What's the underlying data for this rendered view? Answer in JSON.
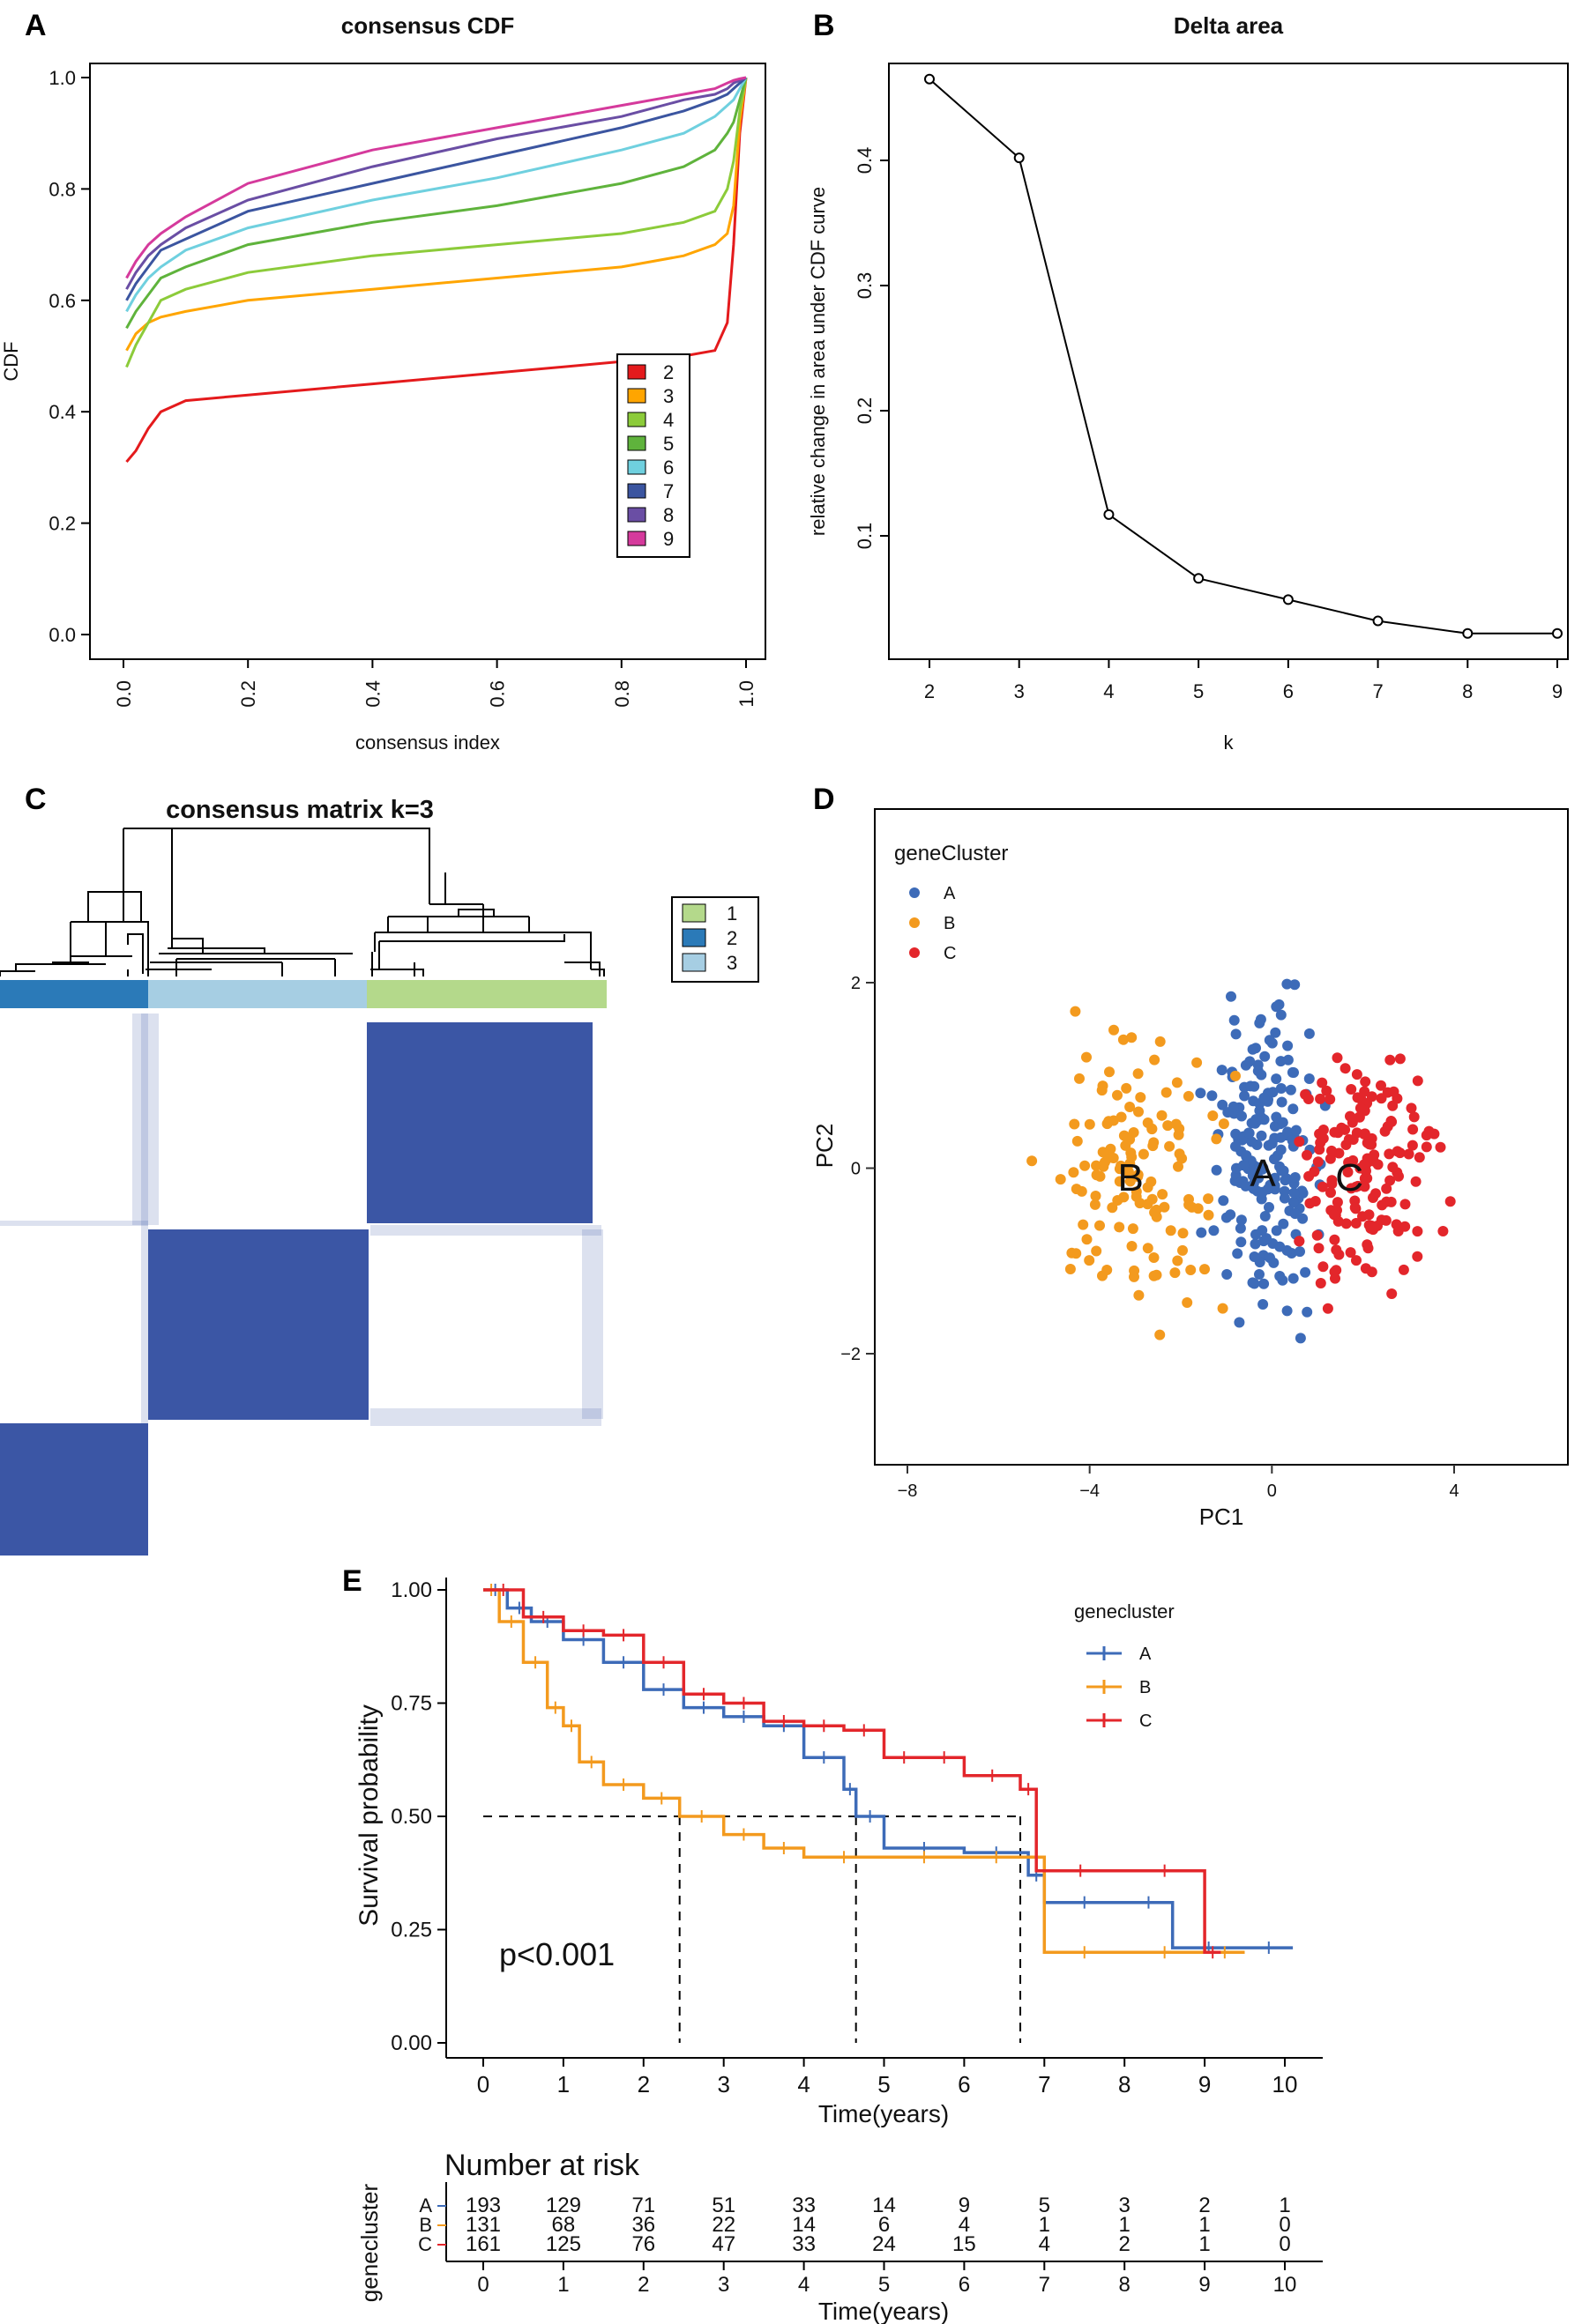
{
  "panel_labels": [
    "A",
    "B",
    "C",
    "D",
    "E"
  ],
  "colors": {
    "k2": "#e41a1c",
    "k3": "#ffa500",
    "k4": "#8ccb3a",
    "k5": "#5fb33c",
    "k6": "#6fd0df",
    "k7": "#3b55a0",
    "k8": "#6a4ea4",
    "k9": "#d53a9c",
    "clusterA": "#3d6bb8",
    "clusterB": "#f39a1e",
    "clusterC": "#e3262b",
    "heat": "#3b56a5",
    "cl1": "#b4d98b",
    "cl2": "#2b7ab8",
    "cl3": "#a6cee3"
  },
  "chart_data": [
    {
      "id": "A",
      "type": "line",
      "title": "consensus CDF",
      "xlabel": "consensus index",
      "ylabel": "CDF",
      "xlim": [
        0,
        1
      ],
      "ylim": [
        0,
        1
      ],
      "xticks": [
        "0.0",
        "0.2",
        "0.4",
        "0.6",
        "0.8",
        "1.0"
      ],
      "yticks": [
        "0.0",
        "0.2",
        "0.4",
        "0.6",
        "0.8",
        "1.0"
      ],
      "legend_position": "center-right",
      "series": [
        {
          "name": "2",
          "color": "#e41a1c",
          "x": [
            0.005,
            0.02,
            0.04,
            0.06,
            0.1,
            0.2,
            0.4,
            0.6,
            0.8,
            0.9,
            0.95,
            0.97,
            0.98,
            0.99,
            1.0
          ],
          "y": [
            0.31,
            0.33,
            0.37,
            0.4,
            0.42,
            0.43,
            0.45,
            0.47,
            0.49,
            0.5,
            0.51,
            0.56,
            0.7,
            0.9,
            1.0
          ]
        },
        {
          "name": "3",
          "color": "#ffa500",
          "x": [
            0.005,
            0.02,
            0.04,
            0.06,
            0.1,
            0.2,
            0.4,
            0.6,
            0.8,
            0.9,
            0.95,
            0.97,
            0.98,
            0.99,
            1.0
          ],
          "y": [
            0.51,
            0.54,
            0.56,
            0.57,
            0.58,
            0.6,
            0.62,
            0.64,
            0.66,
            0.68,
            0.7,
            0.72,
            0.77,
            0.92,
            1.0
          ]
        },
        {
          "name": "4",
          "color": "#8ccb3a",
          "x": [
            0.005,
            0.02,
            0.04,
            0.06,
            0.1,
            0.2,
            0.4,
            0.6,
            0.8,
            0.9,
            0.95,
            0.97,
            0.98,
            0.99,
            1.0
          ],
          "y": [
            0.48,
            0.52,
            0.56,
            0.6,
            0.62,
            0.65,
            0.68,
            0.7,
            0.72,
            0.74,
            0.76,
            0.8,
            0.85,
            0.94,
            1.0
          ]
        },
        {
          "name": "5",
          "color": "#5fb33c",
          "x": [
            0.005,
            0.02,
            0.04,
            0.06,
            0.1,
            0.2,
            0.4,
            0.6,
            0.8,
            0.9,
            0.95,
            0.97,
            0.98,
            0.99,
            1.0
          ],
          "y": [
            0.55,
            0.58,
            0.61,
            0.64,
            0.66,
            0.7,
            0.74,
            0.77,
            0.81,
            0.84,
            0.87,
            0.9,
            0.92,
            0.96,
            1.0
          ]
        },
        {
          "name": "6",
          "color": "#6fd0df",
          "x": [
            0.005,
            0.02,
            0.04,
            0.06,
            0.1,
            0.2,
            0.4,
            0.6,
            0.8,
            0.9,
            0.95,
            0.97,
            0.98,
            0.99,
            1.0
          ],
          "y": [
            0.58,
            0.61,
            0.64,
            0.66,
            0.69,
            0.73,
            0.78,
            0.82,
            0.87,
            0.9,
            0.93,
            0.95,
            0.96,
            0.98,
            1.0
          ]
        },
        {
          "name": "7",
          "color": "#3b55a0",
          "x": [
            0.005,
            0.02,
            0.04,
            0.06,
            0.1,
            0.2,
            0.4,
            0.6,
            0.8,
            0.9,
            0.95,
            0.97,
            0.98,
            0.99,
            1.0
          ],
          "y": [
            0.6,
            0.63,
            0.66,
            0.69,
            0.71,
            0.76,
            0.81,
            0.86,
            0.91,
            0.94,
            0.96,
            0.97,
            0.98,
            0.99,
            1.0
          ]
        },
        {
          "name": "8",
          "color": "#6a4ea4",
          "x": [
            0.005,
            0.02,
            0.04,
            0.06,
            0.1,
            0.2,
            0.4,
            0.6,
            0.8,
            0.9,
            0.95,
            0.97,
            0.98,
            0.99,
            1.0
          ],
          "y": [
            0.62,
            0.65,
            0.68,
            0.7,
            0.73,
            0.78,
            0.84,
            0.89,
            0.93,
            0.96,
            0.97,
            0.98,
            0.99,
            0.995,
            1.0
          ]
        },
        {
          "name": "9",
          "color": "#d53a9c",
          "x": [
            0.005,
            0.02,
            0.04,
            0.06,
            0.1,
            0.2,
            0.4,
            0.6,
            0.8,
            0.9,
            0.95,
            0.97,
            0.98,
            0.99,
            1.0
          ],
          "y": [
            0.64,
            0.67,
            0.7,
            0.72,
            0.75,
            0.81,
            0.87,
            0.91,
            0.95,
            0.97,
            0.98,
            0.99,
            0.995,
            0.998,
            1.0
          ]
        }
      ]
    },
    {
      "id": "B",
      "type": "line",
      "title": "Delta area",
      "xlabel": "k",
      "ylabel": "relative change in area under CDF curve",
      "x": [
        2,
        3,
        4,
        5,
        6,
        7,
        8,
        9
      ],
      "y": [
        0.465,
        0.402,
        0.117,
        0.066,
        0.049,
        0.032,
        0.022,
        0.022
      ],
      "xticks": [
        "2",
        "3",
        "4",
        "5",
        "6",
        "7",
        "8",
        "9"
      ],
      "yticks": [
        "0.1",
        "0.2",
        "0.3",
        "0.4"
      ],
      "ylim": [
        0.01,
        0.48
      ]
    },
    {
      "id": "C",
      "type": "heatmap",
      "title": "consensus matrix k=3",
      "clusters": [
        "1",
        "2",
        "3"
      ],
      "cluster_colors": [
        "#b4d98b",
        "#2b7ab8",
        "#a6cee3"
      ],
      "order": [
        "2",
        "3",
        "1"
      ]
    },
    {
      "id": "D",
      "type": "scatter",
      "xlabel": "PC1",
      "ylabel": "PC2",
      "legend_title": "geneCluster",
      "legend": [
        "A",
        "B",
        "C"
      ],
      "xticks": [
        "−8",
        "−4",
        "0",
        "4"
      ],
      "yticks": [
        "−2",
        "0",
        "2"
      ],
      "xlim": [
        -8.7,
        6.4
      ],
      "ylim": [
        -3.0,
        3.7
      ],
      "centroid_labels": [
        {
          "name": "A",
          "x": -0.2,
          "y": -0.05
        },
        {
          "name": "B",
          "x": -3.1,
          "y": -0.1
        },
        {
          "name": "C",
          "x": 1.7,
          "y": -0.1
        }
      ],
      "groups": [
        {
          "name": "A",
          "color": "#3d6bb8",
          "center": [
            -0.1,
            0.1
          ],
          "spread": [
            0.8,
            1.1
          ],
          "n": 190
        },
        {
          "name": "B",
          "color": "#f39a1e",
          "center": [
            -3.0,
            -0.1
          ],
          "spread": [
            1.3,
            1.0
          ],
          "n": 130
        },
        {
          "name": "C",
          "color": "#e3262b",
          "center": [
            2.0,
            -0.05
          ],
          "spread": [
            1.1,
            0.9
          ],
          "n": 160
        }
      ]
    },
    {
      "id": "E",
      "type": "line",
      "subtype": "kaplan-meier",
      "xlabel": "Time(years)",
      "ylabel": "Survival probability",
      "legend_title": "genecluster",
      "legend": [
        "A",
        "B",
        "C"
      ],
      "pvalue": "p<0.001",
      "xticks": [
        "0",
        "1",
        "2",
        "3",
        "4",
        "5",
        "6",
        "7",
        "8",
        "9",
        "10"
      ],
      "yticks": [
        "0.00",
        "0.25",
        "0.50",
        "0.75",
        "1.00"
      ],
      "xlim": [
        0,
        10
      ],
      "ylim": [
        0,
        1
      ],
      "medians": [
        2.45,
        4.65,
        6.7
      ],
      "series": [
        {
          "name": "A",
          "color": "#3d6bb8",
          "t": [
            0,
            0.3,
            0.6,
            1.0,
            1.5,
            2.0,
            2.5,
            3.0,
            3.5,
            4.0,
            4.5,
            4.65,
            5.0,
            6.0,
            6.8,
            7.0,
            8.0,
            8.6,
            9.5,
            10.1
          ],
          "s": [
            1.0,
            0.96,
            0.93,
            0.89,
            0.84,
            0.78,
            0.74,
            0.72,
            0.7,
            0.63,
            0.56,
            0.5,
            0.43,
            0.42,
            0.37,
            0.31,
            0.31,
            0.21,
            0.21,
            0.21
          ]
        },
        {
          "name": "B",
          "color": "#f39a1e",
          "t": [
            0,
            0.2,
            0.5,
            0.8,
            1.0,
            1.2,
            1.5,
            2.0,
            2.45,
            3.0,
            3.5,
            4.0,
            5.0,
            6.0,
            6.8,
            7.0,
            8.0,
            9.0,
            9.5
          ],
          "s": [
            1.0,
            0.93,
            0.84,
            0.74,
            0.7,
            0.62,
            0.57,
            0.54,
            0.5,
            0.46,
            0.43,
            0.41,
            0.41,
            0.41,
            0.41,
            0.2,
            0.2,
            0.2,
            0.2
          ]
        },
        {
          "name": "C",
          "color": "#e3262b",
          "t": [
            0,
            0.5,
            1.0,
            1.5,
            2.0,
            2.5,
            3.0,
            3.5,
            4.0,
            4.5,
            5.0,
            5.5,
            6.0,
            6.7,
            6.9,
            8.0,
            9.0,
            9.2
          ],
          "s": [
            1.0,
            0.94,
            0.91,
            0.9,
            0.84,
            0.77,
            0.75,
            0.71,
            0.7,
            0.69,
            0.63,
            0.63,
            0.59,
            0.56,
            0.38,
            0.38,
            0.2,
            0.2
          ]
        }
      ],
      "risk_table": {
        "title": "Number at risk",
        "ylabel": "genecluster",
        "times": [
          "0",
          "1",
          "2",
          "3",
          "4",
          "5",
          "6",
          "7",
          "8",
          "9",
          "10"
        ],
        "rows": [
          {
            "name": "A",
            "color": "#3d6bb8",
            "values": [
              "193",
              "129",
              "71",
              "51",
              "33",
              "14",
              "9",
              "5",
              "3",
              "2",
              "1"
            ]
          },
          {
            "name": "B",
            "color": "#f39a1e",
            "values": [
              "131",
              "68",
              "36",
              "22",
              "14",
              "6",
              "4",
              "1",
              "1",
              "1",
              "0"
            ]
          },
          {
            "name": "C",
            "color": "#e3262b",
            "values": [
              "161",
              "125",
              "76",
              "47",
              "33",
              "24",
              "15",
              "4",
              "2",
              "1",
              "0"
            ]
          }
        ]
      }
    }
  ]
}
